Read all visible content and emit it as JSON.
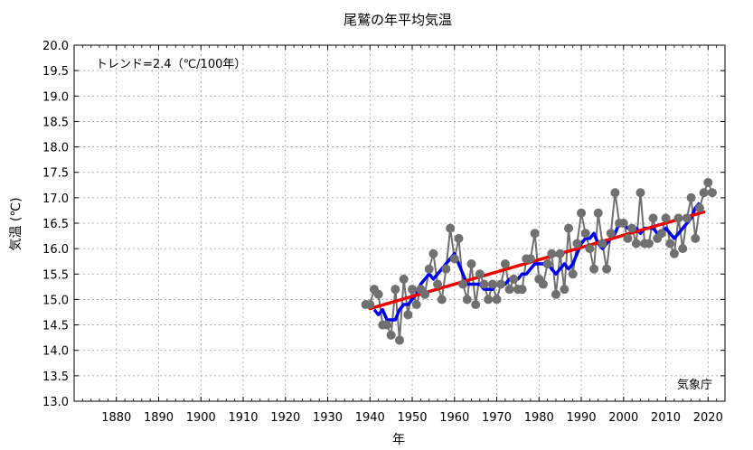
{
  "chart_data": {
    "type": "line",
    "title": "尾鷲の年平均気温",
    "xlabel": "年",
    "ylabel": "気温 (℃)",
    "xlim": [
      1870,
      2024
    ],
    "ylim": [
      13.0,
      20.0
    ],
    "x_ticks": [
      1880,
      1890,
      1900,
      1910,
      1920,
      1930,
      1940,
      1950,
      1960,
      1970,
      1980,
      1990,
      2000,
      2010,
      2020
    ],
    "x_tick_labels": [
      "1880",
      "1890",
      "1900",
      "1910",
      "1920",
      "1930",
      "1940",
      "1950",
      "1960",
      "1970",
      "1980",
      "1990",
      "2000",
      "2010",
      "2020"
    ],
    "y_ticks": [
      13.0,
      13.5,
      14.0,
      14.5,
      15.0,
      15.5,
      16.0,
      16.5,
      17.0,
      17.5,
      18.0,
      18.5,
      19.0,
      19.5,
      20.0
    ],
    "y_tick_labels": [
      "13.0",
      "13.5",
      "14.0",
      "14.5",
      "15.0",
      "15.5",
      "16.0",
      "16.5",
      "17.0",
      "17.5",
      "18.0",
      "18.5",
      "19.0",
      "19.5",
      "20.0"
    ],
    "grid": true,
    "trend_text": "トレンド=2.4（℃/100年）",
    "source_text": "気象庁",
    "colors": {
      "annual": "#707070",
      "moving_average": "#0000ee",
      "trend": "#ee0000"
    },
    "series": [
      {
        "kind": "annual",
        "x": [
          1939,
          1940,
          1941,
          1942,
          1943,
          1944,
          1945,
          1946,
          1947,
          1948,
          1949,
          1950,
          1951,
          1952,
          1953,
          1954,
          1955,
          1956,
          1957,
          1958,
          1959,
          1960,
          1961,
          1962,
          1963,
          1964,
          1965,
          1966,
          1967,
          1968,
          1969,
          1970,
          1971,
          1972,
          1973,
          1974,
          1975,
          1976,
          1977,
          1978,
          1979,
          1980,
          1981,
          1982,
          1983,
          1984,
          1985,
          1986,
          1987,
          1988,
          1989,
          1990,
          1991,
          1992,
          1993,
          1994,
          1995,
          1996,
          1997,
          1998,
          1999,
          2000,
          2001,
          2002,
          2003,
          2004,
          2005,
          2006,
          2007,
          2008,
          2009,
          2010,
          2011,
          2012,
          2013,
          2014,
          2015,
          2016,
          2017,
          2018,
          2019,
          2020,
          2021
        ],
        "y": [
          14.9,
          14.9,
          15.2,
          15.1,
          14.5,
          14.5,
          14.3,
          15.2,
          14.2,
          15.4,
          14.7,
          15.2,
          14.9,
          15.2,
          15.1,
          15.6,
          15.9,
          15.3,
          15.0,
          15.6,
          16.4,
          15.8,
          16.2,
          15.3,
          15.0,
          15.7,
          14.9,
          15.5,
          15.3,
          15.0,
          15.3,
          15.0,
          15.3,
          15.7,
          15.2,
          15.4,
          15.2,
          15.2,
          15.8,
          15.8,
          16.3,
          15.4,
          15.3,
          15.7,
          15.9,
          15.1,
          15.9,
          15.2,
          16.4,
          15.5,
          16.1,
          16.7,
          16.3,
          16.0,
          15.6,
          16.7,
          16.1,
          15.6,
          16.3,
          17.1,
          16.5,
          16.5,
          16.2,
          16.4,
          16.1,
          17.1,
          16.1,
          16.1,
          16.6,
          16.2,
          16.3,
          16.6,
          16.1,
          15.9,
          16.6,
          16.0,
          16.6,
          17.0,
          16.2,
          16.8,
          17.1,
          17.3,
          17.1
        ]
      },
      {
        "kind": "moving_average",
        "x": [
          1941,
          1942,
          1943,
          1944,
          1945,
          1946,
          1947,
          1948,
          1949,
          1950,
          1951,
          1952,
          1953,
          1954,
          1955,
          1956,
          1957,
          1958,
          1959,
          1960,
          1961,
          1962,
          1963,
          1964,
          1965,
          1966,
          1967,
          1968,
          1969,
          1970,
          1971,
          1972,
          1973,
          1974,
          1975,
          1976,
          1977,
          1978,
          1979,
          1980,
          1981,
          1982,
          1983,
          1984,
          1985,
          1986,
          1987,
          1988,
          1989,
          1990,
          1991,
          1992,
          1993,
          1994,
          1995,
          1996,
          1997,
          1998,
          1999,
          2000,
          2001,
          2002,
          2003,
          2004,
          2005,
          2006,
          2007,
          2008,
          2009,
          2010,
          2011,
          2012,
          2013,
          2014,
          2015,
          2016,
          2017,
          2018
        ],
        "y": [
          14.8,
          14.7,
          14.8,
          14.6,
          14.6,
          14.6,
          14.8,
          14.9,
          14.9,
          15.0,
          15.1,
          15.3,
          15.4,
          15.5,
          15.4,
          15.5,
          15.6,
          15.7,
          15.8,
          15.9,
          15.7,
          15.5,
          15.3,
          15.3,
          15.3,
          15.3,
          15.2,
          15.2,
          15.2,
          15.3,
          15.3,
          15.3,
          15.4,
          15.4,
          15.4,
          15.5,
          15.5,
          15.6,
          15.7,
          15.7,
          15.7,
          15.7,
          15.6,
          15.5,
          15.6,
          15.7,
          15.6,
          15.7,
          15.9,
          16.1,
          16.2,
          16.2,
          16.3,
          16.1,
          16.0,
          16.1,
          16.2,
          16.3,
          16.5,
          16.5,
          16.4,
          16.4,
          16.4,
          16.3,
          16.4,
          16.4,
          16.4,
          16.3,
          16.3,
          16.4,
          16.3,
          16.2,
          16.3,
          16.4,
          16.5,
          16.6,
          16.8,
          16.9
        ]
      },
      {
        "kind": "trend",
        "x": [
          1940,
          2019
        ],
        "y": [
          14.82,
          16.72
        ]
      }
    ]
  }
}
